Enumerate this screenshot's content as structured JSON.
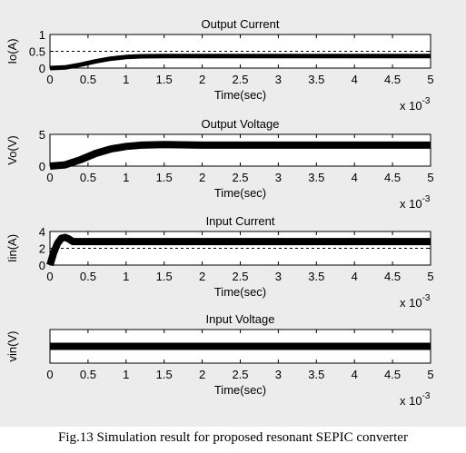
{
  "caption": "Fig.13 Simulation result for proposed resonant SEPIC converter",
  "colors": {
    "figure_bg": "#ececec",
    "axes_bg": "#ffffff",
    "trace": "#000000"
  },
  "chart_data": [
    {
      "type": "line",
      "title": "Output Current",
      "xlabel": "Time(sec)",
      "ylabel": "Io(A)",
      "x_multiplier": "x 10-3",
      "xlim": [
        0,
        0.005
      ],
      "ylim": [
        0,
        1
      ],
      "xticks": [
        "0",
        "0.5",
        "1",
        "1.5",
        "2",
        "2.5",
        "3",
        "3.5",
        "4",
        "4.5",
        "5"
      ],
      "yticks": [
        "0",
        "0.5",
        "1"
      ],
      "reference_line": 0.5,
      "series": [
        {
          "x": [
            0,
            0.0002,
            0.0004,
            0.0006,
            0.0008,
            0.001,
            0.0012,
            0.0015,
            0.002,
            0.003,
            0.004,
            0.005
          ],
          "values": [
            0,
            0.02,
            0.1,
            0.2,
            0.28,
            0.33,
            0.35,
            0.36,
            0.36,
            0.36,
            0.36,
            0.36
          ]
        }
      ]
    },
    {
      "type": "line",
      "title": "Output Voltage",
      "xlabel": "Time(sec)",
      "ylabel": "Vo(V)",
      "x_multiplier": "x 10-3",
      "xlim": [
        0,
        0.005
      ],
      "ylim": [
        0,
        5
      ],
      "xticks": [
        "0",
        "0.5",
        "1",
        "1.5",
        "2",
        "2.5",
        "3",
        "3.5",
        "4",
        "4.5",
        "5"
      ],
      "yticks": [
        "0",
        "5"
      ],
      "series": [
        {
          "x": [
            0,
            0.0002,
            0.0004,
            0.0006,
            0.0008,
            0.001,
            0.0012,
            0.0015,
            0.0018,
            0.002,
            0.003,
            0.004,
            0.005
          ],
          "values": [
            0,
            0.2,
            1.0,
            2.0,
            2.7,
            3.1,
            3.3,
            3.4,
            3.35,
            3.3,
            3.3,
            3.3,
            3.3
          ]
        }
      ]
    },
    {
      "type": "line",
      "title": "Input Current",
      "xlabel": "Time(sec)",
      "ylabel": "Iin(A)",
      "x_multiplier": "x 10-3",
      "xlim": [
        0,
        0.005
      ],
      "ylim": [
        0,
        4
      ],
      "xticks": [
        "0",
        "0.5",
        "1",
        "1.5",
        "2",
        "2.5",
        "3",
        "3.5",
        "4",
        "4.5",
        "5"
      ],
      "yticks": [
        "0",
        "2",
        "4"
      ],
      "reference_line": 2,
      "series": [
        {
          "x": [
            0,
            5e-05,
            0.0001,
            0.00015,
            0.0002,
            0.00025,
            0.0003,
            0.0004,
            0.0005,
            0.001,
            0.002,
            0.005
          ],
          "values": [
            0,
            1.5,
            2.6,
            3.2,
            3.3,
            3.1,
            2.8,
            2.8,
            2.8,
            2.8,
            2.8,
            2.8
          ]
        }
      ]
    },
    {
      "type": "line",
      "title": "Input Voltage",
      "xlabel": "Time(sec)",
      "ylabel": "vin(V)",
      "x_multiplier": "x 10-3",
      "xlim": [
        0,
        0.005
      ],
      "ylim": [
        0,
        10
      ],
      "xticks": [
        "0",
        "0.5",
        "1",
        "1.5",
        "2",
        "2.5",
        "3",
        "3.5",
        "4",
        "4.5",
        "5"
      ],
      "yticks": [],
      "series": [
        {
          "x": [
            0,
            0.005
          ],
          "values": [
            5,
            5
          ]
        }
      ]
    }
  ]
}
